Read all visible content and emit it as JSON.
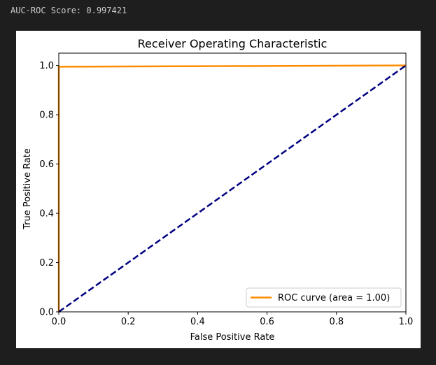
{
  "output": {
    "text": "AUC-ROC Score: 0.997421"
  },
  "chart_data": {
    "type": "line",
    "title": "Receiver Operating Characteristic",
    "xlabel": "False Positive Rate",
    "ylabel": "True Positive Rate",
    "xlim": [
      0.0,
      1.0
    ],
    "ylim": [
      0.0,
      1.05
    ],
    "xticks": [
      0.0,
      0.2,
      0.4,
      0.6,
      0.8,
      1.0
    ],
    "yticks": [
      0.0,
      0.2,
      0.4,
      0.6,
      0.8,
      1.0
    ],
    "xtick_labels": [
      "0.0",
      "0.2",
      "0.4",
      "0.6",
      "0.8",
      "1.0"
    ],
    "ytick_labels": [
      "0.0",
      "0.2",
      "0.4",
      "0.6",
      "0.8",
      "1.0"
    ],
    "grid": false,
    "legend_position": "lower-right",
    "series": [
      {
        "name": "ROC curve (area = 1.00)",
        "color": "#ff8c00",
        "style": "solid",
        "x": [
          0.0,
          0.0,
          0.0,
          1.0
        ],
        "y": [
          0.0,
          0.7,
          0.995,
          1.0
        ]
      },
      {
        "color": "#000080",
        "style": "dashed",
        "x": [
          0.0,
          1.0
        ],
        "y": [
          0.0,
          1.0
        ]
      }
    ]
  }
}
